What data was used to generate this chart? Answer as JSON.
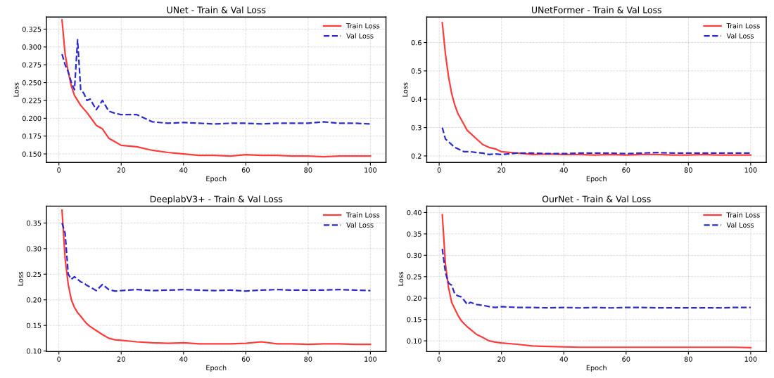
{
  "chart_data": [
    {
      "type": "line",
      "title": "UNet - Train & Val Loss",
      "xlabel": "Epoch",
      "ylabel": "Loss",
      "grid": true,
      "legend": "top right",
      "marker": "none",
      "x": [
        1,
        2,
        3,
        4,
        5,
        6,
        7,
        8,
        9,
        10,
        12,
        14,
        16,
        18,
        20,
        25,
        30,
        35,
        40,
        45,
        50,
        55,
        60,
        65,
        70,
        75,
        80,
        85,
        90,
        95,
        100
      ],
      "xlim": [
        -4,
        105
      ],
      "xticks": [
        0,
        20,
        40,
        60,
        80,
        100
      ],
      "ylim": [
        0.138,
        0.342
      ],
      "yticks": [
        {
          "value": 0.15,
          "label": "0.150"
        },
        {
          "value": 0.175,
          "label": "0.175"
        },
        {
          "value": 0.2,
          "label": "0.200"
        },
        {
          "value": 0.225,
          "label": "0.225"
        },
        {
          "value": 0.25,
          "label": "0.250"
        },
        {
          "value": 0.275,
          "label": "0.275"
        },
        {
          "value": 0.3,
          "label": "0.300"
        },
        {
          "value": 0.325,
          "label": "0.325"
        }
      ],
      "series": [
        {
          "name": "Train Loss",
          "color": "#ff3b3b",
          "line_style": "solid",
          "values": [
            0.338,
            0.29,
            0.265,
            0.245,
            0.232,
            0.225,
            0.218,
            0.213,
            0.208,
            0.202,
            0.19,
            0.185,
            0.172,
            0.167,
            0.162,
            0.16,
            0.155,
            0.152,
            0.15,
            0.148,
            0.148,
            0.147,
            0.149,
            0.148,
            0.148,
            0.147,
            0.147,
            0.146,
            0.147,
            0.147,
            0.147
          ]
        },
        {
          "name": "Val Loss",
          "color": "#2a2ad0",
          "line_style": "dashed",
          "values": [
            0.29,
            0.275,
            0.265,
            0.25,
            0.24,
            0.31,
            0.24,
            0.235,
            0.225,
            0.227,
            0.212,
            0.225,
            0.21,
            0.207,
            0.205,
            0.205,
            0.195,
            0.193,
            0.194,
            0.193,
            0.192,
            0.193,
            0.193,
            0.192,
            0.193,
            0.193,
            0.193,
            0.195,
            0.193,
            0.193,
            0.192
          ]
        }
      ]
    },
    {
      "type": "line",
      "title": "UNetFormer - Train & Val Loss",
      "xlabel": "Epoch",
      "ylabel": "Loss",
      "grid": true,
      "legend": "top right",
      "marker": "none",
      "x": [
        1,
        2,
        3,
        4,
        5,
        6,
        7,
        8,
        9,
        10,
        12,
        14,
        16,
        18,
        20,
        25,
        30,
        35,
        40,
        45,
        50,
        55,
        60,
        65,
        70,
        75,
        80,
        85,
        90,
        95,
        100
      ],
      "xlim": [
        -4,
        105
      ],
      "xticks": [
        0,
        20,
        40,
        60,
        80,
        100
      ],
      "ylim": [
        0.177,
        0.69
      ],
      "yticks": [
        0.2,
        0.3,
        0.4,
        0.5,
        0.6
      ],
      "series": [
        {
          "name": "Train Loss",
          "color": "#ff3b3b",
          "line_style": "solid",
          "values": [
            0.67,
            0.56,
            0.48,
            0.42,
            0.38,
            0.35,
            0.33,
            0.31,
            0.29,
            0.28,
            0.26,
            0.24,
            0.23,
            0.225,
            0.215,
            0.21,
            0.205,
            0.207,
            0.205,
            0.205,
            0.203,
            0.205,
            0.203,
            0.205,
            0.205,
            0.203,
            0.203,
            0.205,
            0.203,
            0.203,
            0.203
          ]
        },
        {
          "name": "Val Loss",
          "color": "#2a2ad0",
          "line_style": "dashed",
          "values": [
            0.3,
            0.26,
            0.25,
            0.24,
            0.23,
            0.225,
            0.22,
            0.215,
            0.215,
            0.215,
            0.212,
            0.21,
            0.205,
            0.207,
            0.205,
            0.21,
            0.21,
            0.208,
            0.208,
            0.21,
            0.21,
            0.21,
            0.208,
            0.21,
            0.212,
            0.21,
            0.21,
            0.21,
            0.21,
            0.21,
            0.21
          ]
        }
      ]
    },
    {
      "type": "line",
      "title": "DeeplabV3+ - Train & Val Loss",
      "xlabel": "Epoch",
      "ylabel": "Loss",
      "grid": true,
      "legend": "top right",
      "marker": "none",
      "x": [
        1,
        2,
        3,
        4,
        5,
        6,
        7,
        8,
        9,
        10,
        12,
        14,
        16,
        18,
        20,
        25,
        30,
        35,
        40,
        45,
        50,
        55,
        60,
        65,
        70,
        75,
        80,
        85,
        90,
        95,
        100
      ],
      "xlim": [
        -4,
        105
      ],
      "xticks": [
        0,
        20,
        40,
        60,
        80,
        100
      ],
      "ylim": [
        0.099,
        0.383
      ],
      "yticks": [
        {
          "value": 0.1,
          "label": "0.10"
        },
        {
          "value": 0.15,
          "label": "0.15"
        },
        {
          "value": 0.2,
          "label": "0.20"
        },
        {
          "value": 0.25,
          "label": "0.25"
        },
        {
          "value": 0.3,
          "label": "0.30"
        },
        {
          "value": 0.35,
          "label": "0.35"
        }
      ],
      "series": [
        {
          "name": "Train Loss",
          "color": "#ff3b3b",
          "line_style": "solid",
          "values": [
            0.375,
            0.28,
            0.23,
            0.2,
            0.185,
            0.175,
            0.168,
            0.16,
            0.153,
            0.148,
            0.14,
            0.132,
            0.125,
            0.122,
            0.121,
            0.118,
            0.116,
            0.115,
            0.116,
            0.114,
            0.114,
            0.114,
            0.115,
            0.118,
            0.114,
            0.114,
            0.113,
            0.114,
            0.114,
            0.113,
            0.113
          ]
        },
        {
          "name": "Val Loss",
          "color": "#2a2ad0",
          "line_style": "dashed",
          "values": [
            0.35,
            0.33,
            0.25,
            0.24,
            0.245,
            0.24,
            0.235,
            0.233,
            0.228,
            0.225,
            0.218,
            0.23,
            0.22,
            0.217,
            0.218,
            0.22,
            0.218,
            0.219,
            0.22,
            0.219,
            0.218,
            0.219,
            0.217,
            0.219,
            0.22,
            0.219,
            0.219,
            0.219,
            0.22,
            0.219,
            0.218
          ]
        }
      ]
    },
    {
      "type": "line",
      "title": "OurNet - Train & Val Loss",
      "xlabel": "Epoch",
      "ylabel": "Loss",
      "grid": true,
      "legend": "top right",
      "marker": "none",
      "x": [
        1,
        2,
        3,
        4,
        5,
        6,
        7,
        8,
        9,
        10,
        12,
        14,
        16,
        18,
        20,
        25,
        30,
        35,
        40,
        45,
        50,
        55,
        60,
        65,
        70,
        75,
        80,
        85,
        90,
        95,
        100
      ],
      "xlim": [
        -4,
        105
      ],
      "xticks": [
        0,
        20,
        40,
        60,
        80,
        100
      ],
      "ylim": [
        0.075,
        0.415
      ],
      "yticks": [
        {
          "value": 0.1,
          "label": "0.10"
        },
        {
          "value": 0.15,
          "label": "0.15"
        },
        {
          "value": 0.2,
          "label": "0.20"
        },
        {
          "value": 0.25,
          "label": "0.25"
        },
        {
          "value": 0.3,
          "label": "0.30"
        },
        {
          "value": 0.35,
          "label": "0.35"
        },
        {
          "value": 0.4,
          "label": "0.40"
        }
      ],
      "series": [
        {
          "name": "Train Loss",
          "color": "#ff3b3b",
          "line_style": "solid",
          "values": [
            0.395,
            0.28,
            0.225,
            0.19,
            0.175,
            0.16,
            0.148,
            0.14,
            0.133,
            0.127,
            0.115,
            0.108,
            0.1,
            0.097,
            0.095,
            0.092,
            0.088,
            0.087,
            0.086,
            0.085,
            0.085,
            0.085,
            0.085,
            0.085,
            0.085,
            0.085,
            0.085,
            0.085,
            0.085,
            0.085,
            0.084
          ]
        },
        {
          "name": "Val Loss",
          "color": "#2a2ad0",
          "line_style": "dashed",
          "values": [
            0.315,
            0.26,
            0.235,
            0.23,
            0.21,
            0.205,
            0.203,
            0.195,
            0.185,
            0.19,
            0.185,
            0.183,
            0.18,
            0.178,
            0.18,
            0.178,
            0.178,
            0.177,
            0.178,
            0.177,
            0.178,
            0.177,
            0.178,
            0.178,
            0.177,
            0.177,
            0.177,
            0.177,
            0.177,
            0.178,
            0.178
          ]
        }
      ]
    }
  ]
}
